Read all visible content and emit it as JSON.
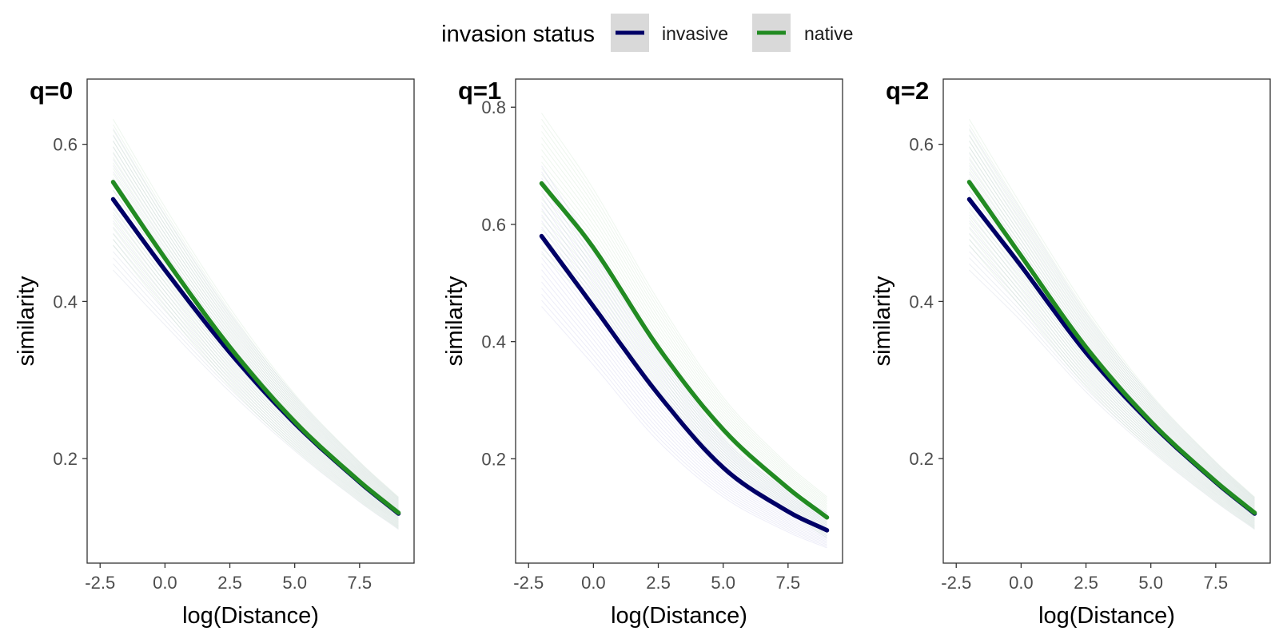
{
  "legend": {
    "title": "invasion status",
    "items": [
      {
        "label": "invasive",
        "color": "#000066"
      },
      {
        "label": "native",
        "color": "#228B22"
      }
    ]
  },
  "chart_data": [
    {
      "type": "line",
      "title": "q=0",
      "xlabel": "log(Distance)",
      "ylabel": "similarity",
      "xlim": [
        -3.0,
        9.6
      ],
      "ylim": [
        0.067,
        0.683
      ],
      "xticks": [
        "-2.5",
        "0.0",
        "2.5",
        "5.0",
        "7.5"
      ],
      "yticks": [
        "0.2",
        "0.4",
        "0.6"
      ],
      "grid": false,
      "series": [
        {
          "name": "invasive",
          "color": "#000066",
          "x": [
            -2,
            0,
            2.5,
            5,
            7.5,
            9
          ],
          "y": [
            0.53,
            0.44,
            0.335,
            0.245,
            0.17,
            0.13
          ]
        },
        {
          "name": "native",
          "color": "#228B22",
          "x": [
            -2,
            0,
            2.5,
            5,
            7.5,
            9
          ],
          "y": [
            0.552,
            0.455,
            0.342,
            0.247,
            0.171,
            0.131
          ]
        }
      ],
      "bands": [
        {
          "color": "#6a7aa8",
          "opacity": 0.12,
          "spread": [
            0.09,
            0.07,
            0.05,
            0.035,
            0.025,
            0.02
          ]
        },
        {
          "color": "#5aa85a",
          "opacity": 0.1,
          "spread": [
            0.08,
            0.065,
            0.05,
            0.035,
            0.025,
            0.02
          ]
        }
      ]
    },
    {
      "type": "line",
      "title": "q=1",
      "xlabel": "log(Distance)",
      "ylabel": "similarity",
      "xlim": [
        -3.0,
        9.6
      ],
      "ylim": [
        0.022,
        0.848
      ],
      "xticks": [
        "-2.5",
        "0.0",
        "2.5",
        "5.0",
        "7.5"
      ],
      "yticks": [
        "0.2",
        "0.4",
        "0.6",
        "0.8"
      ],
      "grid": false,
      "series": [
        {
          "name": "invasive",
          "color": "#000066",
          "x": [
            -2,
            0,
            2.5,
            5,
            7.5,
            9
          ],
          "y": [
            0.58,
            0.46,
            0.31,
            0.185,
            0.11,
            0.078
          ]
        },
        {
          "name": "native",
          "color": "#228B22",
          "x": [
            -2,
            0,
            2.5,
            5,
            7.5,
            9
          ],
          "y": [
            0.67,
            0.56,
            0.39,
            0.25,
            0.15,
            0.1
          ]
        }
      ],
      "bands": [
        {
          "color": "#6a6ac8",
          "opacity": 0.12,
          "spread": [
            0.12,
            0.1,
            0.08,
            0.05,
            0.035,
            0.03
          ]
        },
        {
          "color": "#5aa85a",
          "opacity": 0.1,
          "spread": [
            0.12,
            0.1,
            0.08,
            0.055,
            0.04,
            0.035
          ]
        }
      ]
    },
    {
      "type": "line",
      "title": "q=2",
      "xlabel": "log(Distance)",
      "ylabel": "similarity",
      "xlim": [
        -3.0,
        9.6
      ],
      "ylim": [
        0.067,
        0.683
      ],
      "xticks": [
        "-2.5",
        "0.0",
        "2.5",
        "5.0",
        "7.5"
      ],
      "yticks": [
        "0.2",
        "0.4",
        "0.6"
      ],
      "grid": false,
      "series": [
        {
          "name": "invasive",
          "color": "#000066",
          "x": [
            -2,
            0,
            2.5,
            5,
            7.5,
            9
          ],
          "y": [
            0.53,
            0.445,
            0.335,
            0.245,
            0.17,
            0.13
          ]
        },
        {
          "name": "native",
          "color": "#228B22",
          "x": [
            -2,
            0,
            2.5,
            5,
            7.5,
            9
          ],
          "y": [
            0.552,
            0.458,
            0.342,
            0.247,
            0.171,
            0.131
          ]
        }
      ],
      "bands": [
        {
          "color": "#6a7aa8",
          "opacity": 0.12,
          "spread": [
            0.09,
            0.07,
            0.05,
            0.035,
            0.025,
            0.02
          ]
        },
        {
          "color": "#5aa85a",
          "opacity": 0.1,
          "spread": [
            0.08,
            0.065,
            0.05,
            0.035,
            0.025,
            0.02
          ]
        }
      ]
    }
  ]
}
